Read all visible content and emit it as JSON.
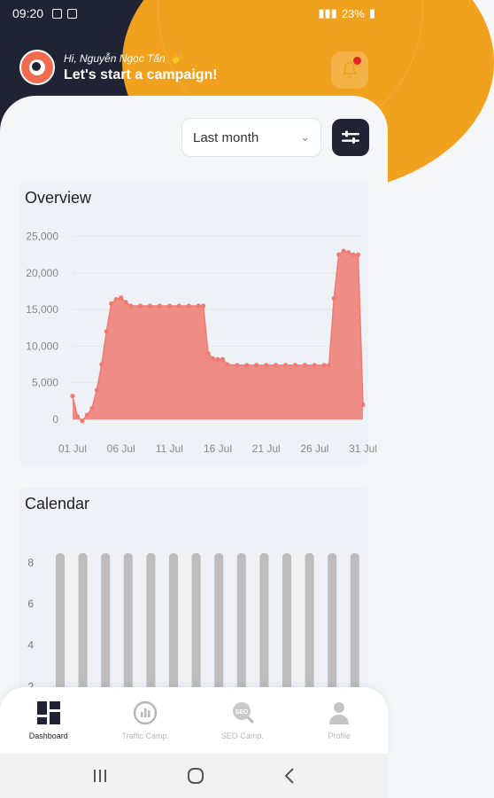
{
  "status_bar": {
    "time": "09:20",
    "battery": "23%"
  },
  "greeting": {
    "hi": "Hi, Nguyễn Ngọc Tấn 👋",
    "title": "Let's start a campaign!"
  },
  "filter": {
    "selected": "Last month"
  },
  "overview": {
    "title": "Overview"
  },
  "calendar": {
    "title": "Calendar"
  },
  "chart_data": [
    {
      "type": "area",
      "title": "Overview",
      "y_ticks": [
        "25,000",
        "20,000",
        "15,000",
        "10,000",
        "5,000",
        "0"
      ],
      "x_ticks": [
        "01 Jul",
        "06 Jul",
        "11 Jul",
        "16 Jul",
        "21 Jul",
        "26 Jul",
        "31 Jul"
      ],
      "ylim": [
        0,
        27000
      ],
      "xlim": [
        1,
        31
      ],
      "color": "#f08c86",
      "series": [
        {
          "x": [
            1,
            1.5,
            2,
            2.5,
            3,
            3.5,
            4,
            4.5,
            5,
            5.5,
            6,
            6.5,
            7,
            8,
            9,
            10,
            11,
            12,
            13,
            14,
            14.5,
            15,
            15.5,
            16,
            16.5,
            17,
            18,
            19,
            20,
            21,
            22,
            23,
            24,
            25,
            26,
            27,
            27.5,
            28,
            28.5,
            29,
            29.5,
            30,
            30.5,
            31
          ],
          "values": [
            3200,
            400,
            -200,
            600,
            1500,
            4000,
            7500,
            12000,
            15800,
            16400,
            16600,
            16000,
            15500,
            15500,
            15500,
            15500,
            15500,
            15500,
            15500,
            15500,
            15500,
            9000,
            8300,
            8200,
            8200,
            7500,
            7400,
            7400,
            7400,
            7400,
            7400,
            7400,
            7400,
            7400,
            7400,
            7400,
            7400,
            16500,
            22500,
            23000,
            22800,
            22500,
            22500,
            2000
          ]
        }
      ]
    },
    {
      "type": "bar",
      "title": "Calendar",
      "y_ticks": [
        "8",
        "6",
        "4",
        "2"
      ],
      "ylim": [
        0,
        9
      ],
      "bar_count": 14,
      "values": [
        8,
        8,
        8,
        8,
        8,
        8,
        8,
        8,
        8,
        8,
        8,
        8,
        8,
        8
      ],
      "color": "#bdbdbd"
    }
  ],
  "nav": [
    {
      "label": "Dashboard",
      "icon": "dashboard-icon"
    },
    {
      "label": "Traffic Camp.",
      "icon": "traffic-icon"
    },
    {
      "label": "SEO Camp.",
      "icon": "seo-icon"
    },
    {
      "label": "Profile",
      "icon": "profile-icon"
    }
  ]
}
